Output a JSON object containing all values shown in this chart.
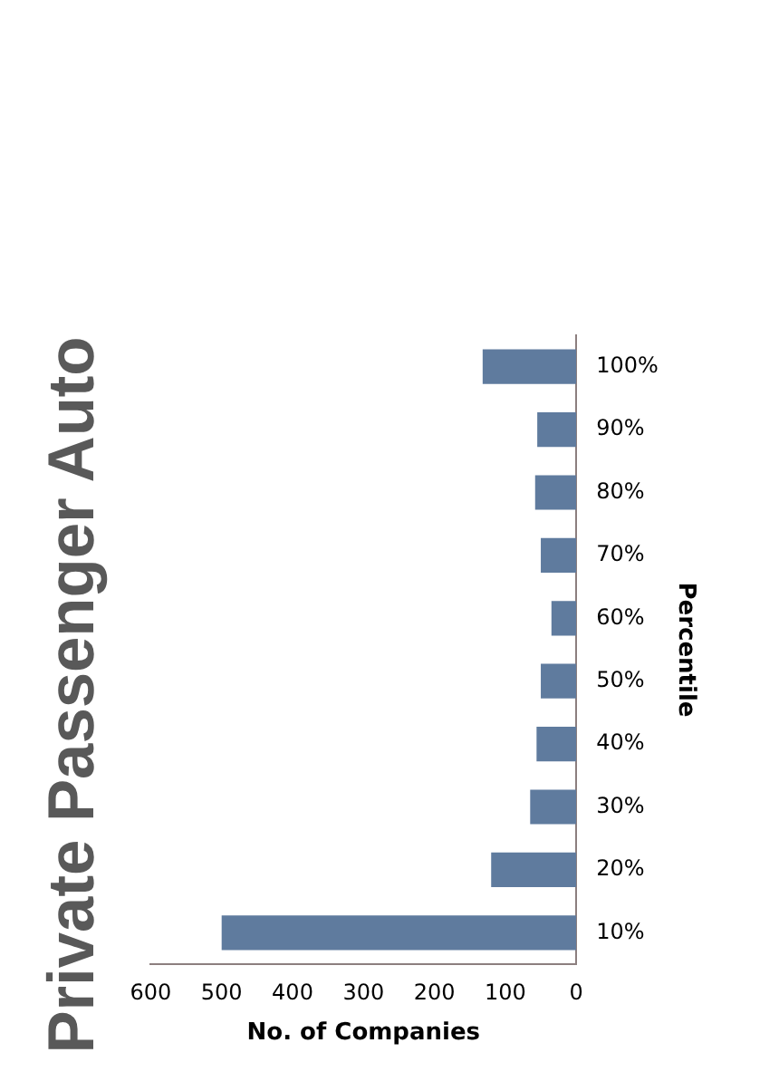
{
  "chart_data": {
    "type": "bar",
    "orientation": "horizontal",
    "title": "Private Passenger Auto",
    "xlabel": "No. of Companies",
    "ylabel": "Percentile",
    "categories": [
      "100%",
      "90%",
      "80%",
      "70%",
      "60%",
      "50%",
      "40%",
      "30%",
      "20%",
      "10%"
    ],
    "values": [
      132,
      55,
      58,
      50,
      35,
      50,
      56,
      65,
      120,
      500
    ],
    "color": "#5f7b9e",
    "xlim": [
      600,
      0
    ],
    "xticks": [
      0,
      100,
      200,
      300,
      400,
      500,
      600
    ],
    "grid": false,
    "legend": false
  }
}
